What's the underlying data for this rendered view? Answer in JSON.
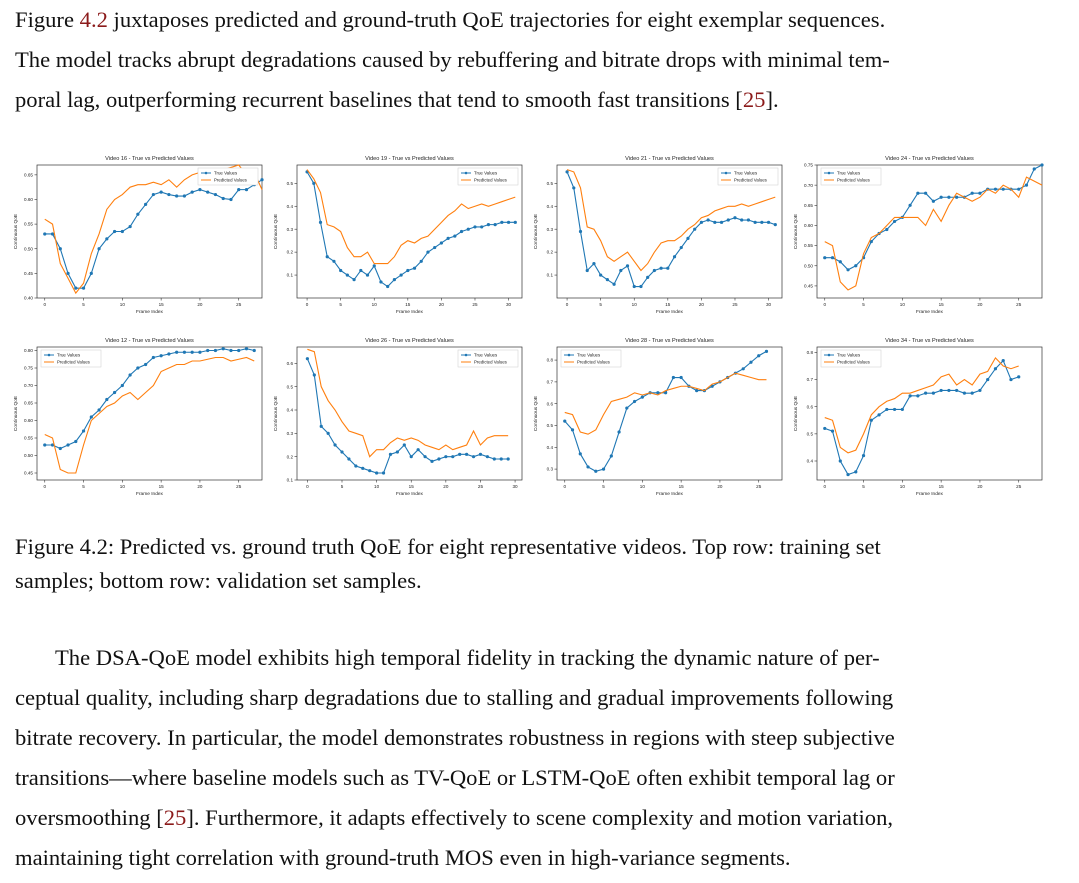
{
  "intro": {
    "l1_pre": "Figure ",
    "l1_ref": "4.2",
    "l1_post": " juxtaposes predicted and ground-truth QoE trajectories for eight exemplar sequences.",
    "l2": "The model tracks abrupt degradations caused by rebuffering and bitrate drops with minimal tem-",
    "l3_pre": "poral lag, outperforming recurrent baselines that tend to smooth fast transitions [",
    "l3_ref": "25",
    "l3_post": "]."
  },
  "caption": {
    "l1": "Figure 4.2: Predicted vs. ground truth QoE for eight representative videos. Top row: training set",
    "l2": "samples; bottom row: validation set samples."
  },
  "body": {
    "l1": "The DSA-QoE model exhibits high temporal fidelity in tracking the dynamic nature of per-",
    "l2": "ceptual quality, including sharp degradations due to stalling and gradual improvements following",
    "l3": "bitrate recovery. In particular, the model demonstrates robustness in regions with steep subjective",
    "l4": "transitions—where baseline models such as TV-QoE or LSTM-QoE often exhibit temporal lag or",
    "l5_pre": "oversmoothing [",
    "l5_ref": "25",
    "l5_post": "]. Furthermore, it adapts effectively to scene complexity and motion variation,",
    "l6": "maintaining tight correlation with ground-truth MOS even in high-variance segments."
  },
  "colors": {
    "true_series": "#1f77b4",
    "pred_series": "#ff7f0e",
    "reference": "#8b1a1a"
  },
  "chart_data": [
    {
      "type": "line",
      "title": "Video 16 - True vs Predicted Values",
      "xlabel": "Frame Index",
      "ylabel": "Continuous QoE",
      "xlim": [
        -1,
        28
      ],
      "ylim": [
        0.4,
        0.67
      ],
      "xticks": [
        0,
        5,
        10,
        15,
        20,
        25
      ],
      "yticks": [
        0.4,
        0.45,
        0.5,
        0.55,
        0.6,
        0.65
      ],
      "legend": "top-right",
      "grid": false,
      "series": [
        {
          "name": "True Values",
          "values": [
            0.53,
            0.53,
            0.5,
            0.45,
            0.42,
            0.42,
            0.45,
            0.5,
            0.52,
            0.535,
            0.535,
            0.545,
            0.57,
            0.59,
            0.61,
            0.615,
            0.61,
            0.607,
            0.607,
            0.615,
            0.62,
            0.615,
            0.61,
            0.602,
            0.6,
            0.62,
            0.62,
            0.63,
            0.64
          ]
        },
        {
          "name": "Predicted Values",
          "values": [
            0.56,
            0.55,
            0.47,
            0.44,
            0.41,
            0.43,
            0.49,
            0.53,
            0.58,
            0.6,
            0.61,
            0.625,
            0.63,
            0.63,
            0.635,
            0.63,
            0.64,
            0.625,
            0.64,
            0.65,
            0.655,
            0.66,
            0.655,
            0.66,
            0.665,
            0.67,
            0.65,
            0.655,
            0.62
          ]
        }
      ]
    },
    {
      "type": "line",
      "title": "Video 19 - True vs Predicted Values",
      "xlabel": "Frame Index",
      "ylabel": "Continuous QoE",
      "xlim": [
        -1.5,
        32
      ],
      "ylim": [
        0.0,
        0.58
      ],
      "xticks": [
        0,
        5,
        10,
        15,
        20,
        25,
        30
      ],
      "yticks": [
        0.1,
        0.2,
        0.3,
        0.4,
        0.5
      ],
      "legend": "top-right",
      "grid": false,
      "series": [
        {
          "name": "True Values",
          "values": [
            0.55,
            0.5,
            0.33,
            0.18,
            0.16,
            0.12,
            0.1,
            0.08,
            0.12,
            0.1,
            0.14,
            0.07,
            0.05,
            0.08,
            0.1,
            0.12,
            0.13,
            0.16,
            0.2,
            0.22,
            0.24,
            0.26,
            0.27,
            0.29,
            0.3,
            0.31,
            0.31,
            0.32,
            0.32,
            0.33,
            0.33,
            0.33
          ]
        },
        {
          "name": "Predicted Values",
          "values": [
            0.56,
            0.52,
            0.46,
            0.32,
            0.31,
            0.29,
            0.22,
            0.18,
            0.18,
            0.2,
            0.15,
            0.15,
            0.15,
            0.18,
            0.23,
            0.25,
            0.24,
            0.26,
            0.27,
            0.3,
            0.33,
            0.36,
            0.38,
            0.41,
            0.39,
            0.4,
            0.41,
            0.4,
            0.41,
            0.42,
            0.43,
            0.44
          ]
        }
      ]
    },
    {
      "type": "line",
      "title": "Video 21 - True vs Predicted Values",
      "xlabel": "Frame Index",
      "ylabel": "Continuous QoE",
      "xlim": [
        -1.5,
        32
      ],
      "ylim": [
        0.0,
        0.58
      ],
      "xticks": [
        0,
        5,
        10,
        15,
        20,
        25,
        30
      ],
      "yticks": [
        0.1,
        0.2,
        0.3,
        0.4,
        0.5
      ],
      "legend": "top-right",
      "grid": false,
      "series": [
        {
          "name": "True Values",
          "values": [
            0.55,
            0.48,
            0.29,
            0.12,
            0.15,
            0.1,
            0.08,
            0.06,
            0.12,
            0.14,
            0.05,
            0.05,
            0.09,
            0.12,
            0.13,
            0.13,
            0.18,
            0.22,
            0.26,
            0.3,
            0.33,
            0.34,
            0.33,
            0.33,
            0.34,
            0.35,
            0.34,
            0.34,
            0.33,
            0.33,
            0.33,
            0.32
          ]
        },
        {
          "name": "Predicted Values",
          "values": [
            0.56,
            0.55,
            0.48,
            0.31,
            0.3,
            0.25,
            0.18,
            0.16,
            0.18,
            0.2,
            0.16,
            0.12,
            0.15,
            0.2,
            0.24,
            0.25,
            0.25,
            0.27,
            0.3,
            0.32,
            0.35,
            0.36,
            0.38,
            0.39,
            0.4,
            0.4,
            0.41,
            0.4,
            0.41,
            0.42,
            0.43,
            0.44
          ]
        }
      ]
    },
    {
      "type": "line",
      "title": "Video 24 - True vs Predicted Values",
      "xlabel": "Frame Index",
      "ylabel": "Continuous QoE",
      "xlim": [
        -1,
        28
      ],
      "ylim": [
        0.42,
        0.75
      ],
      "xticks": [
        0,
        5,
        10,
        15,
        20,
        25
      ],
      "yticks": [
        0.45,
        0.5,
        0.55,
        0.6,
        0.65,
        0.7,
        0.75
      ],
      "legend": "top-left",
      "grid": false,
      "series": [
        {
          "name": "True Values",
          "values": [
            0.52,
            0.52,
            0.51,
            0.49,
            0.5,
            0.52,
            0.56,
            0.58,
            0.59,
            0.61,
            0.62,
            0.65,
            0.68,
            0.68,
            0.66,
            0.67,
            0.67,
            0.67,
            0.67,
            0.68,
            0.68,
            0.69,
            0.69,
            0.69,
            0.69,
            0.69,
            0.7,
            0.74,
            0.75
          ]
        },
        {
          "name": "Predicted Values",
          "values": [
            0.56,
            0.55,
            0.46,
            0.44,
            0.45,
            0.53,
            0.57,
            0.58,
            0.6,
            0.62,
            0.62,
            0.62,
            0.62,
            0.6,
            0.64,
            0.61,
            0.65,
            0.68,
            0.67,
            0.66,
            0.67,
            0.69,
            0.68,
            0.7,
            0.69,
            0.67,
            0.72,
            0.71,
            0.7
          ]
        }
      ]
    },
    {
      "type": "line",
      "title": "Video 12 - True vs Predicted Values",
      "xlabel": "Frame Index",
      "ylabel": "Continuous QoE",
      "xlim": [
        -1,
        28
      ],
      "ylim": [
        0.43,
        0.81
      ],
      "xticks": [
        0,
        5,
        10,
        15,
        20,
        25
      ],
      "yticks": [
        0.45,
        0.5,
        0.55,
        0.6,
        0.65,
        0.7,
        0.75,
        0.8
      ],
      "legend": "top-left",
      "grid": false,
      "series": [
        {
          "name": "True Values",
          "values": [
            0.53,
            0.53,
            0.52,
            0.53,
            0.54,
            0.57,
            0.61,
            0.63,
            0.66,
            0.68,
            0.7,
            0.73,
            0.75,
            0.76,
            0.78,
            0.785,
            0.79,
            0.795,
            0.795,
            0.795,
            0.795,
            0.8,
            0.8,
            0.805,
            0.8,
            0.8,
            0.805,
            0.8
          ]
        },
        {
          "name": "Predicted Values",
          "values": [
            0.56,
            0.55,
            0.46,
            0.45,
            0.45,
            0.53,
            0.6,
            0.62,
            0.64,
            0.65,
            0.67,
            0.68,
            0.66,
            0.68,
            0.7,
            0.74,
            0.75,
            0.76,
            0.76,
            0.77,
            0.77,
            0.775,
            0.78,
            0.78,
            0.77,
            0.775,
            0.78,
            0.77
          ]
        }
      ]
    },
    {
      "type": "line",
      "title": "Video 26 - True vs Predicted Values",
      "xlabel": "Frame Index",
      "ylabel": "Continuous QoE",
      "xlim": [
        -1.5,
        31
      ],
      "ylim": [
        0.1,
        0.67
      ],
      "xticks": [
        0,
        5,
        10,
        15,
        20,
        25,
        30
      ],
      "yticks": [
        0.1,
        0.2,
        0.3,
        0.4,
        0.5,
        0.6
      ],
      "legend": "top-right",
      "grid": false,
      "series": [
        {
          "name": "True Values",
          "values": [
            0.62,
            0.55,
            0.33,
            0.3,
            0.25,
            0.22,
            0.19,
            0.16,
            0.15,
            0.14,
            0.13,
            0.13,
            0.21,
            0.22,
            0.25,
            0.2,
            0.23,
            0.2,
            0.18,
            0.19,
            0.2,
            0.2,
            0.21,
            0.21,
            0.2,
            0.21,
            0.2,
            0.19,
            0.19,
            0.19
          ]
        },
        {
          "name": "Predicted Values",
          "values": [
            0.66,
            0.65,
            0.5,
            0.44,
            0.4,
            0.35,
            0.31,
            0.3,
            0.29,
            0.2,
            0.23,
            0.23,
            0.26,
            0.28,
            0.27,
            0.28,
            0.27,
            0.25,
            0.24,
            0.23,
            0.25,
            0.23,
            0.24,
            0.25,
            0.31,
            0.25,
            0.28,
            0.29,
            0.29,
            0.29
          ]
        }
      ]
    },
    {
      "type": "line",
      "title": "Video 28 - True vs Predicted Values",
      "xlabel": "Frame Index",
      "ylabel": "Continuous QoE",
      "xlim": [
        -1,
        28
      ],
      "ylim": [
        0.25,
        0.86
      ],
      "xticks": [
        0,
        5,
        10,
        15,
        20,
        25
      ],
      "yticks": [
        0.3,
        0.4,
        0.5,
        0.6,
        0.7,
        0.8
      ],
      "legend": "top-left",
      "grid": false,
      "series": [
        {
          "name": "True Values",
          "values": [
            0.52,
            0.48,
            0.37,
            0.31,
            0.29,
            0.3,
            0.36,
            0.47,
            0.58,
            0.61,
            0.63,
            0.65,
            0.65,
            0.65,
            0.72,
            0.72,
            0.68,
            0.66,
            0.66,
            0.68,
            0.7,
            0.72,
            0.74,
            0.76,
            0.79,
            0.82,
            0.84
          ]
        },
        {
          "name": "Predicted Values",
          "values": [
            0.56,
            0.55,
            0.47,
            0.46,
            0.48,
            0.55,
            0.61,
            0.62,
            0.63,
            0.65,
            0.64,
            0.65,
            0.64,
            0.66,
            0.67,
            0.68,
            0.68,
            0.67,
            0.66,
            0.69,
            0.7,
            0.72,
            0.74,
            0.73,
            0.72,
            0.71,
            0.71
          ]
        }
      ]
    },
    {
      "type": "line",
      "title": "Video 34 - True vs Predicted Values",
      "xlabel": "Frame Index",
      "ylabel": "Continuous QoE",
      "xlim": [
        -1,
        28
      ],
      "ylim": [
        0.33,
        0.82
      ],
      "xticks": [
        0,
        5,
        10,
        15,
        20,
        25
      ],
      "yticks": [
        0.4,
        0.5,
        0.6,
        0.7,
        0.8
      ],
      "legend": "top-left",
      "grid": false,
      "series": [
        {
          "name": "True Values",
          "values": [
            0.52,
            0.51,
            0.4,
            0.35,
            0.36,
            0.42,
            0.55,
            0.57,
            0.59,
            0.59,
            0.59,
            0.64,
            0.64,
            0.65,
            0.65,
            0.66,
            0.66,
            0.66,
            0.65,
            0.65,
            0.66,
            0.7,
            0.74,
            0.77,
            0.7,
            0.71
          ]
        },
        {
          "name": "Predicted Values",
          "values": [
            0.56,
            0.55,
            0.45,
            0.43,
            0.44,
            0.5,
            0.57,
            0.6,
            0.62,
            0.63,
            0.65,
            0.65,
            0.66,
            0.67,
            0.68,
            0.71,
            0.72,
            0.68,
            0.7,
            0.68,
            0.72,
            0.73,
            0.78,
            0.75,
            0.74,
            0.75
          ]
        }
      ]
    }
  ]
}
